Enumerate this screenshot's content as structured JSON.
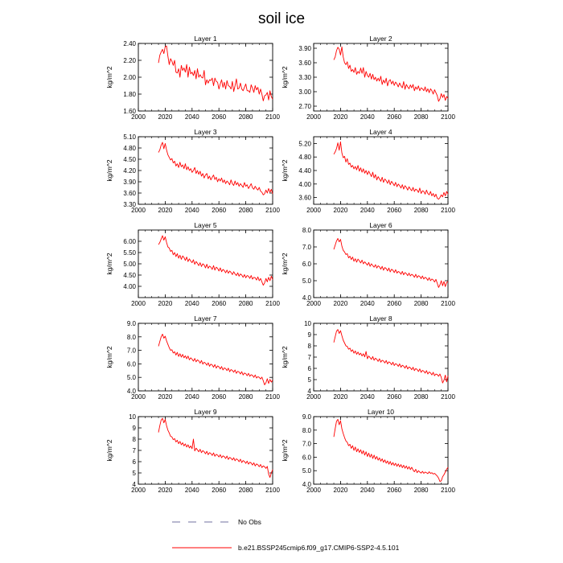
{
  "title": "soil ice",
  "legend": {
    "no_obs_label": "No Obs",
    "model_label": "b.e21.BSSP245cmip6.f09_g17.CMIP6-SSP2-4.5.101",
    "model_color": "#ff0000",
    "obs_color": "#7070a0"
  },
  "chart_data": [
    {
      "type": "line",
      "title": "Layer 1",
      "ylabel": "kg/m^2",
      "xlim": [
        2000,
        2100
      ],
      "ylim": [
        1.6,
        2.4
      ],
      "xticks": [
        "2000",
        "2020",
        "2040",
        "2060",
        "2080",
        "2100"
      ],
      "yticks": [
        {
          "v": 1.6,
          "label": "1.60"
        },
        {
          "v": 1.8,
          "label": "1.80"
        },
        {
          "v": 2.0,
          "label": "2.00"
        },
        {
          "v": 2.2,
          "label": "2.20"
        },
        {
          "v": 2.4,
          "label": "2.40"
        }
      ],
      "x_start": 2015,
      "x_end": 2100,
      "values": [
        2.17,
        2.26,
        2.3,
        2.33,
        2.28,
        2.36,
        2.37,
        2.25,
        2.15,
        2.22,
        2.19,
        2.14,
        2.2,
        2.06,
        2.05,
        2.1,
        2.0,
        2.14,
        2.08,
        2.11,
        2.06,
        2.15,
        2.0,
        2.12,
        2.04,
        2.06,
        2.02,
        2.08,
        1.98,
        2.1,
        2.0,
        2.03,
        2.0,
        1.99,
        2.08,
        1.91,
        1.97,
        1.93,
        1.97,
        1.96,
        1.99,
        1.9,
        1.99,
        1.95,
        1.94,
        1.86,
        1.92,
        1.97,
        1.88,
        1.94,
        1.86,
        1.96,
        1.9,
        1.89,
        1.86,
        1.95,
        1.83,
        1.9,
        1.98,
        1.86,
        1.87,
        1.93,
        1.86,
        1.84,
        1.88,
        1.92,
        1.84,
        1.84,
        1.82,
        1.91,
        1.87,
        1.82,
        1.9,
        1.85,
        1.88,
        1.8,
        1.86,
        1.8,
        1.72,
        1.78,
        1.79,
        1.82,
        1.73,
        1.84,
        1.77,
        1.74
      ]
    },
    {
      "type": "line",
      "title": "Layer 2",
      "ylabel": "kg/m^2",
      "xlim": [
        2000,
        2100
      ],
      "ylim": [
        2.6,
        4.0
      ],
      "xticks": [
        "2000",
        "2020",
        "2040",
        "2060",
        "2080",
        "2100"
      ],
      "yticks": [
        {
          "v": 2.7,
          "label": "2.70"
        },
        {
          "v": 3.0,
          "label": "3.00"
        },
        {
          "v": 3.3,
          "label": "3.30"
        },
        {
          "v": 3.6,
          "label": "3.60"
        },
        {
          "v": 3.9,
          "label": "3.90"
        }
      ],
      "x_start": 2015,
      "x_end": 2100,
      "values": [
        3.66,
        3.72,
        3.85,
        3.92,
        3.88,
        3.76,
        3.93,
        3.72,
        3.6,
        3.56,
        3.62,
        3.48,
        3.55,
        3.42,
        3.46,
        3.4,
        3.5,
        3.36,
        3.42,
        3.38,
        3.49,
        3.38,
        3.5,
        3.3,
        3.42,
        3.34,
        3.3,
        3.38,
        3.26,
        3.36,
        3.25,
        3.3,
        3.22,
        3.28,
        3.22,
        3.32,
        3.15,
        3.24,
        3.18,
        3.28,
        3.12,
        3.22,
        3.25,
        3.16,
        3.22,
        3.13,
        3.2,
        3.16,
        3.1,
        3.18,
        3.12,
        3.08,
        3.21,
        3.05,
        3.15,
        3.1,
        3.06,
        3.14,
        3.08,
        3.15,
        3.02,
        3.1,
        3.05,
        3.12,
        3.02,
        3.08,
        3.06,
        3.02,
        3.1,
        3.0,
        3.06,
        2.98,
        3.06,
        3.02,
        2.95,
        3.04,
        2.98,
        2.92,
        2.8,
        2.85,
        2.96,
        2.88,
        2.94,
        2.82,
        2.9,
        2.86
      ]
    },
    {
      "type": "line",
      "title": "Layer 3",
      "ylabel": "kg/m^2",
      "xlim": [
        2000,
        2100
      ],
      "ylim": [
        3.3,
        5.1
      ],
      "xticks": [
        "2000",
        "2020",
        "2040",
        "2060",
        "2080",
        "2100"
      ],
      "yticks": [
        {
          "v": 3.3,
          "label": "3.30"
        },
        {
          "v": 3.6,
          "label": "3.60"
        },
        {
          "v": 3.9,
          "label": "3.90"
        },
        {
          "v": 4.2,
          "label": "4.20"
        },
        {
          "v": 4.5,
          "label": "4.50"
        },
        {
          "v": 4.8,
          "label": "4.80"
        },
        {
          "v": 5.1,
          "label": "5.10"
        }
      ],
      "x_start": 2015,
      "x_end": 2100,
      "values": [
        4.68,
        4.75,
        4.88,
        4.95,
        4.78,
        4.92,
        4.75,
        4.62,
        4.55,
        4.48,
        4.52,
        4.4,
        4.45,
        4.32,
        4.38,
        4.28,
        4.42,
        4.3,
        4.35,
        4.25,
        4.38,
        4.22,
        4.3,
        4.2,
        4.25,
        4.15,
        4.2,
        4.28,
        4.12,
        4.2,
        4.1,
        4.18,
        4.05,
        4.12,
        4.0,
        4.08,
        4.12,
        3.98,
        4.05,
        3.95,
        4.02,
        4.08,
        3.96,
        4.02,
        3.9,
        3.98,
        3.92,
        4.0,
        3.88,
        3.95,
        3.85,
        3.92,
        3.88,
        3.82,
        3.95,
        3.85,
        3.8,
        3.92,
        3.82,
        3.88,
        3.78,
        3.85,
        3.8,
        3.75,
        3.88,
        3.78,
        3.82,
        3.72,
        3.78,
        3.85,
        3.74,
        3.7,
        3.78,
        3.72,
        3.68,
        3.75,
        3.65,
        3.62,
        3.55,
        3.58,
        3.68,
        3.6,
        3.72,
        3.62,
        3.7,
        3.58
      ]
    },
    {
      "type": "line",
      "title": "Layer 4",
      "ylabel": "kg/m^2",
      "xlim": [
        2000,
        2100
      ],
      "ylim": [
        3.4,
        5.4
      ],
      "xticks": [
        "2000",
        "2020",
        "2040",
        "2060",
        "2080",
        "2100"
      ],
      "yticks": [
        {
          "v": 3.6,
          "label": "3.60"
        },
        {
          "v": 4.0,
          "label": "4.00"
        },
        {
          "v": 4.4,
          "label": "4.40"
        },
        {
          "v": 4.8,
          "label": "4.80"
        },
        {
          "v": 5.2,
          "label": "5.20"
        }
      ],
      "x_start": 2015,
      "x_end": 2100,
      "values": [
        4.88,
        4.95,
        5.05,
        5.22,
        5.0,
        5.25,
        4.92,
        4.78,
        4.82,
        4.65,
        4.75,
        4.58,
        4.62,
        4.5,
        4.55,
        4.45,
        4.52,
        4.42,
        4.55,
        4.38,
        4.48,
        4.35,
        4.45,
        4.32,
        4.4,
        4.28,
        4.38,
        4.3,
        4.22,
        4.35,
        4.18,
        4.28,
        4.12,
        4.22,
        4.15,
        4.08,
        4.2,
        4.05,
        4.15,
        4.1,
        4.02,
        4.12,
        3.98,
        4.08,
        4.02,
        3.95,
        4.05,
        3.92,
        4.0,
        3.95,
        3.88,
        3.98,
        3.85,
        3.95,
        3.9,
        3.82,
        3.92,
        3.85,
        3.8,
        3.9,
        3.78,
        3.85,
        3.82,
        3.75,
        3.88,
        3.72,
        3.8,
        3.78,
        3.7,
        3.82,
        3.72,
        3.68,
        3.78,
        3.65,
        3.72,
        3.62,
        3.7,
        3.58,
        3.55,
        3.6,
        3.68,
        3.62,
        3.75,
        3.65,
        3.78,
        3.7
      ]
    },
    {
      "type": "line",
      "title": "Layer 5",
      "ylabel": "kg/m^2",
      "xlim": [
        2000,
        2100
      ],
      "ylim": [
        3.5,
        6.5
      ],
      "xticks": [
        "2000",
        "2020",
        "2040",
        "2060",
        "2080",
        "2100"
      ],
      "yticks": [
        {
          "v": 4.0,
          "label": "4.00"
        },
        {
          "v": 4.5,
          "label": "4.50"
        },
        {
          "v": 5.0,
          "label": "5.00"
        },
        {
          "v": 5.5,
          "label": "5.50"
        },
        {
          "v": 6.0,
          "label": "6.00"
        }
      ],
      "x_start": 2015,
      "x_end": 2100,
      "values": [
        5.85,
        5.95,
        6.1,
        6.25,
        6.05,
        6.2,
        5.95,
        5.75,
        5.7,
        5.55,
        5.6,
        5.4,
        5.5,
        5.32,
        5.45,
        5.25,
        5.38,
        5.2,
        5.35,
        5.28,
        5.15,
        5.3,
        5.1,
        5.22,
        5.12,
        5.05,
        5.18,
        4.98,
        5.1,
        5.02,
        4.92,
        5.05,
        4.88,
        5.0,
        4.95,
        4.82,
        4.98,
        4.8,
        4.9,
        4.85,
        4.75,
        4.92,
        4.72,
        4.85,
        4.8,
        4.68,
        4.82,
        4.65,
        4.75,
        4.7,
        4.6,
        4.72,
        4.58,
        4.68,
        4.62,
        4.52,
        4.65,
        4.55,
        4.48,
        4.6,
        4.45,
        4.55,
        4.5,
        4.4,
        4.52,
        4.38,
        4.48,
        4.45,
        4.35,
        4.48,
        4.32,
        4.4,
        4.38,
        4.28,
        4.42,
        4.25,
        4.35,
        4.2,
        4.05,
        4.15,
        4.35,
        4.2,
        4.4,
        4.25,
        4.45,
        4.3
      ]
    },
    {
      "type": "line",
      "title": "Layer 6",
      "ylabel": "kg/m^2",
      "xlim": [
        2000,
        2100
      ],
      "ylim": [
        4.0,
        8.0
      ],
      "xticks": [
        "2000",
        "2020",
        "2040",
        "2060",
        "2080",
        "2100"
      ],
      "yticks": [
        {
          "v": 4.0,
          "label": "4.0"
        },
        {
          "v": 5.0,
          "label": "5.0"
        },
        {
          "v": 6.0,
          "label": "6.0"
        },
        {
          "v": 7.0,
          "label": "7.0"
        },
        {
          "v": 8.0,
          "label": "8.0"
        }
      ],
      "x_start": 2015,
      "x_end": 2100,
      "values": [
        6.85,
        7.1,
        7.35,
        7.5,
        7.3,
        7.45,
        7.05,
        6.8,
        6.7,
        6.55,
        6.6,
        6.35,
        6.45,
        6.25,
        6.4,
        6.15,
        6.3,
        6.1,
        6.28,
        6.18,
        6.05,
        6.22,
        6.0,
        6.12,
        6.02,
        5.92,
        6.08,
        5.85,
        6.0,
        5.9,
        5.8,
        5.95,
        5.75,
        5.88,
        5.82,
        5.68,
        5.85,
        5.62,
        5.78,
        5.72,
        5.58,
        5.75,
        5.52,
        5.68,
        5.62,
        5.48,
        5.65,
        5.45,
        5.55,
        5.5,
        5.38,
        5.55,
        5.35,
        5.48,
        5.42,
        5.3,
        5.45,
        5.28,
        5.38,
        5.32,
        5.2,
        5.38,
        5.18,
        5.3,
        5.25,
        5.12,
        5.28,
        5.1,
        5.2,
        5.15,
        5.02,
        5.18,
        5.0,
        5.1,
        5.05,
        4.92,
        5.08,
        4.85,
        4.6,
        4.75,
        5.0,
        4.7,
        4.95,
        4.65,
        4.9,
        4.95
      ]
    },
    {
      "type": "line",
      "title": "Layer 7",
      "ylabel": "kg/m^2",
      "xlim": [
        2000,
        2100
      ],
      "ylim": [
        4.0,
        9.0
      ],
      "xticks": [
        "2000",
        "2020",
        "2040",
        "2060",
        "2080",
        "2100"
      ],
      "yticks": [
        {
          "v": 4.0,
          "label": "4.0"
        },
        {
          "v": 5.0,
          "label": "5.0"
        },
        {
          "v": 6.0,
          "label": "6.0"
        },
        {
          "v": 7.0,
          "label": "7.0"
        },
        {
          "v": 8.0,
          "label": "8.0"
        },
        {
          "v": 9.0,
          "label": "9.0"
        }
      ],
      "x_start": 2015,
      "x_end": 2100,
      "values": [
        7.3,
        7.65,
        8.0,
        8.2,
        7.9,
        8.05,
        7.7,
        7.45,
        7.2,
        7.0,
        7.05,
        6.8,
        6.9,
        6.65,
        6.85,
        6.55,
        6.75,
        6.5,
        6.7,
        6.45,
        6.6,
        6.38,
        6.58,
        6.3,
        6.45,
        6.35,
        6.2,
        6.4,
        6.15,
        6.3,
        6.22,
        6.05,
        6.25,
        5.98,
        6.12,
        6.05,
        5.9,
        6.08,
        5.82,
        5.98,
        5.92,
        5.75,
        5.95,
        5.68,
        5.85,
        5.78,
        5.62,
        5.8,
        5.55,
        5.7,
        5.65,
        5.5,
        5.68,
        5.42,
        5.58,
        5.52,
        5.38,
        5.55,
        5.3,
        5.45,
        5.4,
        5.25,
        5.42,
        5.18,
        5.32,
        5.28,
        5.12,
        5.3,
        5.08,
        5.2,
        5.15,
        5.0,
        5.18,
        4.95,
        5.05,
        5.0,
        4.88,
        5.02,
        4.75,
        4.45,
        4.6,
        4.9,
        4.55,
        4.85,
        4.65,
        4.8
      ]
    },
    {
      "type": "line",
      "title": "Layer 8",
      "ylabel": "kg/m^2",
      "xlim": [
        2000,
        2100
      ],
      "ylim": [
        4,
        10
      ],
      "xticks": [
        "2000",
        "2020",
        "2040",
        "2060",
        "2080",
        "2100"
      ],
      "yticks": [
        {
          "v": 4,
          "label": "4"
        },
        {
          "v": 5,
          "label": "5"
        },
        {
          "v": 6,
          "label": "6"
        },
        {
          "v": 7,
          "label": "7"
        },
        {
          "v": 8,
          "label": "8"
        },
        {
          "v": 9,
          "label": "9"
        },
        {
          "v": 10,
          "label": "10"
        }
      ],
      "x_start": 2015,
      "x_end": 2100,
      "values": [
        8.3,
        8.8,
        9.3,
        9.45,
        9.1,
        9.35,
        8.9,
        8.5,
        8.25,
        8.0,
        7.95,
        7.7,
        7.8,
        7.5,
        7.65,
        7.35,
        7.55,
        7.25,
        7.45,
        7.2,
        7.35,
        7.1,
        7.3,
        7.02,
        7.5,
        6.85,
        7.1,
        6.95,
        6.8,
        7.05,
        6.72,
        6.9,
        6.8,
        6.62,
        6.85,
        6.55,
        6.72,
        6.65,
        6.48,
        6.7,
        6.4,
        6.58,
        6.5,
        6.32,
        6.55,
        6.25,
        6.42,
        6.35,
        6.18,
        6.4,
        6.1,
        6.28,
        6.2,
        6.02,
        6.25,
        5.95,
        6.12,
        6.05,
        5.88,
        6.1,
        5.8,
        5.98,
        5.9,
        5.72,
        5.95,
        5.65,
        5.82,
        5.75,
        5.58,
        5.8,
        5.5,
        5.68,
        5.6,
        5.42,
        5.65,
        5.35,
        5.5,
        5.45,
        5.3,
        5.5,
        5.2,
        4.7,
        4.95,
        5.4,
        4.8,
        5.35
      ]
    },
    {
      "type": "line",
      "title": "Layer 9",
      "ylabel": "kg/m^2",
      "xlim": [
        2000,
        2100
      ],
      "ylim": [
        4,
        10
      ],
      "xticks": [
        "2000",
        "2020",
        "2040",
        "2060",
        "2080",
        "2100"
      ],
      "yticks": [
        {
          "v": 4,
          "label": "4"
        },
        {
          "v": 5,
          "label": "5"
        },
        {
          "v": 6,
          "label": "6"
        },
        {
          "v": 7,
          "label": "7"
        },
        {
          "v": 8,
          "label": "8"
        },
        {
          "v": 9,
          "label": "9"
        },
        {
          "v": 10,
          "label": "10"
        }
      ],
      "x_start": 2015,
      "x_end": 2100,
      "values": [
        8.6,
        9.2,
        9.7,
        9.85,
        9.45,
        9.75,
        9.2,
        8.8,
        8.55,
        8.25,
        8.2,
        7.95,
        8.05,
        7.75,
        7.9,
        7.6,
        7.8,
        7.5,
        7.68,
        7.4,
        7.58,
        7.3,
        7.5,
        7.22,
        7.4,
        7.15,
        8.0,
        6.95,
        7.2,
        7.05,
        6.88,
        7.1,
        6.8,
        6.98,
        6.88,
        6.7,
        6.92,
        6.62,
        6.8,
        6.72,
        6.55,
        6.78,
        6.48,
        6.65,
        6.58,
        6.42,
        6.62,
        6.35,
        6.52,
        6.45,
        6.28,
        6.5,
        6.2,
        6.38,
        6.3,
        6.15,
        6.35,
        6.08,
        6.25,
        6.18,
        6.0,
        6.22,
        5.92,
        6.1,
        6.02,
        5.85,
        6.05,
        5.78,
        5.95,
        5.88,
        5.7,
        5.9,
        5.62,
        5.8,
        5.72,
        5.55,
        5.75,
        5.48,
        5.62,
        5.55,
        5.4,
        5.58,
        4.9,
        4.6,
        5.0,
        5.3
      ]
    },
    {
      "type": "line",
      "title": "Layer 10",
      "ylabel": "kg/m^2",
      "xlim": [
        2000,
        2100
      ],
      "ylim": [
        4.0,
        9.0
      ],
      "xticks": [
        "2000",
        "2020",
        "2040",
        "2060",
        "2080",
        "2100"
      ],
      "yticks": [
        {
          "v": 4.0,
          "label": "4.0"
        },
        {
          "v": 5.0,
          "label": "5.0"
        },
        {
          "v": 6.0,
          "label": "6.0"
        },
        {
          "v": 7.0,
          "label": "7.0"
        },
        {
          "v": 8.0,
          "label": "8.0"
        },
        {
          "v": 9.0,
          "label": "9.0"
        }
      ],
      "x_start": 2015,
      "x_end": 2100,
      "values": [
        7.5,
        8.1,
        8.65,
        8.8,
        8.4,
        8.7,
        8.1,
        7.75,
        7.45,
        7.2,
        7.1,
        6.85,
        6.95,
        6.65,
        6.85,
        6.5,
        6.75,
        6.4,
        6.62,
        6.35,
        6.55,
        6.25,
        6.48,
        6.15,
        6.4,
        6.05,
        6.3,
        6.0,
        6.22,
        5.9,
        6.15,
        5.85,
        6.05,
        5.78,
        5.95,
        5.7,
        5.88,
        5.62,
        5.8,
        5.55,
        5.72,
        5.48,
        5.68,
        5.42,
        5.6,
        5.38,
        5.55,
        5.32,
        5.5,
        5.28,
        5.45,
        5.22,
        5.4,
        5.18,
        5.35,
        5.12,
        5.3,
        5.08,
        5.25,
        5.05,
        4.92,
        5.1,
        4.85,
        5.0,
        4.9,
        4.82,
        4.95,
        4.8,
        4.9,
        4.85,
        4.78,
        4.92,
        4.8,
        4.85,
        4.75,
        4.8,
        4.7,
        4.6,
        4.45,
        4.2,
        4.25,
        4.55,
        4.7,
        4.9,
        5.1,
        5.25
      ]
    }
  ]
}
